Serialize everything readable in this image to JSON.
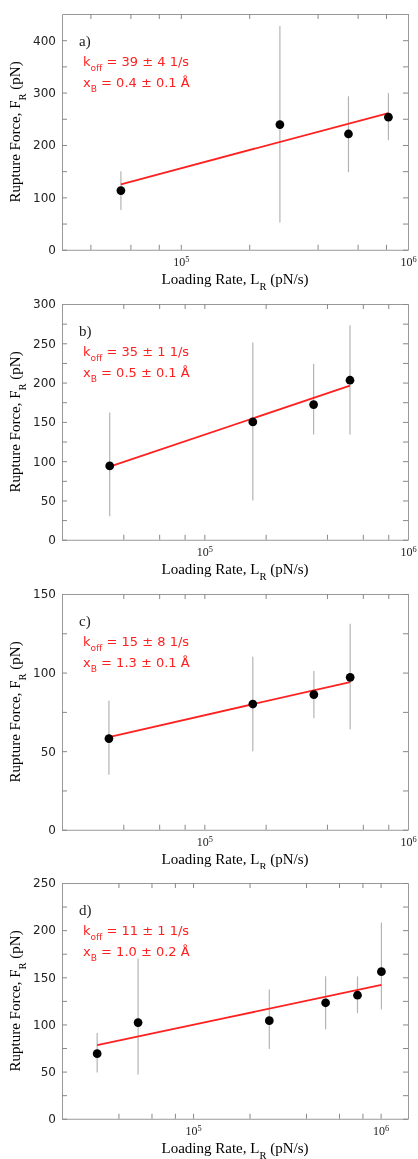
{
  "chart_data": [
    {
      "type": "scatter",
      "xlabel": "Loading Rate, L$_{R}$ (pN/s)",
      "ylabel": "Rupture Force, F$_{R}$ (pN)",
      "log": "x",
      "grid": false,
      "xlim": [
        30000,
        1000000
      ],
      "xticks": [
        {
          "value": 40000,
          "label": null
        },
        {
          "value": 60000,
          "label": null
        },
        {
          "value": 80000,
          "label": null
        },
        {
          "value": 100000,
          "label": "10$^{5}$"
        },
        {
          "value": 200000,
          "label": null
        },
        {
          "value": 400000,
          "label": null
        },
        {
          "value": 600000,
          "label": null
        },
        {
          "value": 800000,
          "label": null
        },
        {
          "value": 1000000,
          "label": "10$^{6}$"
        }
      ],
      "ylim": [
        0,
        450
      ],
      "yticks": [
        0,
        {
          "value": 50,
          "label": null
        },
        100,
        {
          "value": 150,
          "label": null
        },
        200,
        {
          "value": 250,
          "label": null
        },
        300,
        {
          "value": 350,
          "label": null
        },
        400
      ],
      "annotations": [
        "a)",
        "k$_{off}$ = 39 ± 4 1/s",
        "x$_{B}$ = 0.4 ± 0.1 Å"
      ],
      "series": [
        {
          "type": "line",
          "color": "#ff2020",
          "x": [
            54500,
            820000
          ],
          "values": [
            125,
            261
          ]
        },
        {
          "marker": "circle",
          "color": "#000000",
          "x": [
            54500,
            273000,
            547000,
            820000
          ],
          "values": [
            113,
            239,
            221,
            253
          ],
          "errors": [
            [
              76,
              150
            ],
            [
              52,
              427
            ],
            [
              148,
              293
            ],
            [
              209,
              299
            ]
          ]
        }
      ]
    },
    {
      "type": "scatter",
      "xlabel": "Loading Rate, L$_{R}$ (pN/s)",
      "ylabel": "Rupture Force, F$_{R}$ (pN)",
      "log": "x",
      "grid": false,
      "xlim": [
        20000,
        1000000
      ],
      "xticks": [
        {
          "value": 40000,
          "label": null
        },
        {
          "value": 60000,
          "label": null
        },
        {
          "value": 80000,
          "label": null
        },
        {
          "value": 100000,
          "label": "10$^{5}$"
        },
        {
          "value": 200000,
          "label": null
        },
        {
          "value": 400000,
          "label": null
        },
        {
          "value": 600000,
          "label": null
        },
        {
          "value": 800000,
          "label": null
        },
        {
          "value": 1000000,
          "label": "10$^{6}$"
        }
      ],
      "ylim": [
        0,
        300
      ],
      "yticks": [
        0,
        {
          "value": 25,
          "label": null
        },
        50,
        {
          "value": 75,
          "label": null
        },
        100,
        {
          "value": 125,
          "label": null
        },
        150,
        {
          "value": 175,
          "label": null
        },
        200,
        {
          "value": 225,
          "label": null
        },
        250,
        {
          "value": 275,
          "label": null
        },
        300
      ],
      "annotations": [
        "b)",
        "k$_{off}$ = 35 ± 1 1/s",
        "x$_{B}$ = 0.5 ± 0.1 Å"
      ],
      "series": [
        {
          "type": "line",
          "color": "#ff2020",
          "x": [
            34300,
            519000
          ],
          "values": [
            93,
            196
          ]
        },
        {
          "marker": "circle",
          "color": "#000000",
          "x": [
            34300,
            173000,
            344000,
            519000
          ],
          "values": [
            94,
            150,
            172,
            203
          ],
          "errors": [
            [
              30,
              162
            ],
            [
              50,
              251
            ],
            [
              134,
              224
            ],
            [
              134,
              273
            ]
          ]
        }
      ]
    },
    {
      "type": "scatter",
      "xlabel": "Loading Rate, L$_{R}$ (pN/s)",
      "ylabel": "Rupture Force, F$_{R}$ (pN)",
      "log": "x",
      "grid": false,
      "xlim": [
        20000,
        1000000
      ],
      "xticks": [
        {
          "value": 40000,
          "label": null
        },
        {
          "value": 60000,
          "label": null
        },
        {
          "value": 80000,
          "label": null
        },
        {
          "value": 100000,
          "label": "10$^{5}$"
        },
        {
          "value": 200000,
          "label": null
        },
        {
          "value": 400000,
          "label": null
        },
        {
          "value": 600000,
          "label": null
        },
        {
          "value": 800000,
          "label": null
        },
        {
          "value": 1000000,
          "label": "10$^{6}$"
        }
      ],
      "ylim": [
        0,
        150
      ],
      "yticks": [
        0,
        {
          "value": 25,
          "label": null
        },
        50,
        {
          "value": 75,
          "label": null
        },
        100,
        {
          "value": 125,
          "label": null
        },
        150
      ],
      "annotations": [
        "c)",
        "k$_{off}$ = 15 ± 8 1/s",
        "x$_{B}$ = 1.3 ± 0.1 Å"
      ],
      "series": [
        {
          "type": "line",
          "color": "#ff2020",
          "x": [
            34000,
            520000
          ],
          "values": [
            59,
            94
          ]
        },
        {
          "marker": "circle",
          "color": "#000000",
          "x": [
            34000,
            173000,
            345000,
            520000
          ],
          "values": [
            58,
            80,
            86,
            97
          ],
          "errors": [
            [
              35,
              82
            ],
            [
              50,
              110
            ],
            [
              71,
              101
            ],
            [
              64,
              131
            ]
          ]
        }
      ]
    },
    {
      "type": "scatter",
      "xlabel": "Loading Rate, L$_{R}$ (pN/s)",
      "ylabel": "Rupture Force, F$_{R}$ (pN)",
      "log": "x",
      "grid": false,
      "xlim": [
        20000,
        1400000
      ],
      "xticks": [
        {
          "value": 40000,
          "label": null
        },
        {
          "value": 60000,
          "label": null
        },
        {
          "value": 80000,
          "label": null
        },
        {
          "value": 100000,
          "label": "10$^{5}$"
        },
        {
          "value": 200000,
          "label": null
        },
        {
          "value": 400000,
          "label": null
        },
        {
          "value": 600000,
          "label": null
        },
        {
          "value": 800000,
          "label": null
        },
        {
          "value": 1000000,
          "label": "10$^{6}$"
        }
      ],
      "ylim": [
        0,
        250
      ],
      "yticks": [
        0,
        {
          "value": 25,
          "label": null
        },
        50,
        {
          "value": 75,
          "label": null
        },
        100,
        {
          "value": 125,
          "label": null
        },
        150,
        {
          "value": 175,
          "label": null
        },
        200,
        {
          "value": 225,
          "label": null
        },
        250
      ],
      "annotations": [
        "d)",
        "k$_{off}$ = 11 ± 1 1/s",
        "x$_{B}$ = 1.0 ± 0.2 Å"
      ],
      "series": [
        {
          "type": "line",
          "color": "#ff2020",
          "x": [
            30800,
            1010000
          ],
          "values": [
            78,
            142
          ]
        },
        {
          "marker": "circle",
          "color": "#000000",
          "x": [
            30800,
            50900,
            255000,
            509000,
            753000,
            1010000
          ],
          "values": [
            69,
            102,
            104,
            123,
            131,
            156
          ],
          "errors": [
            [
              49,
              91
            ],
            [
              47,
              170
            ],
            [
              74,
              137
            ],
            [
              95,
              151
            ],
            [
              112,
              151
            ],
            [
              116,
              208
            ]
          ]
        }
      ]
    }
  ]
}
